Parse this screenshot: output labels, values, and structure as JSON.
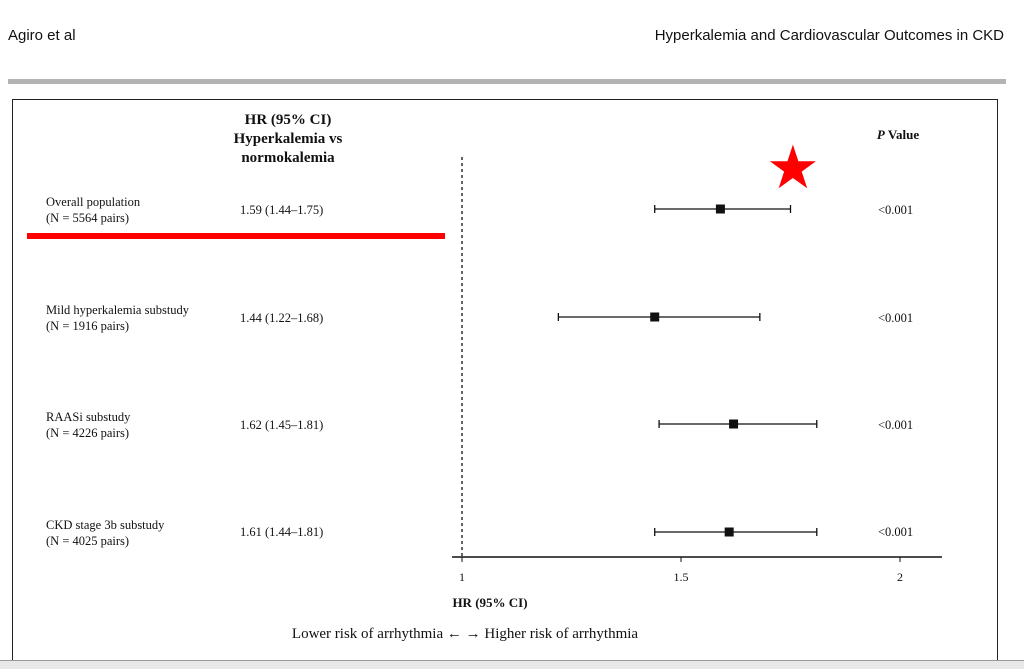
{
  "header": {
    "left": "Agiro et al",
    "right": "Hyperkalemia and Cardiovascular Outcomes in CKD"
  },
  "table": {
    "hr_header": [
      "HR (95% CI)",
      "Hyperkalemia vs",
      "normokalemia"
    ],
    "p_header_italic": "P",
    "p_header_rest": " Value"
  },
  "chart_data": {
    "type": "forest",
    "xlabel": "HR (95% CI)",
    "xlim": [
      1,
      2.1
    ],
    "xticks": [
      "1",
      "1.5",
      "2"
    ],
    "xtick_values": [
      1,
      1.5,
      2
    ],
    "reference_line": 1,
    "rows": [
      {
        "label": "Overall population",
        "sublabel": "(N = 5564 pairs)",
        "hr_text": "1.59 (1.44–1.75)",
        "hr": 1.59,
        "lo": 1.44,
        "hi": 1.75,
        "p": "<0.001"
      },
      {
        "label": "Mild hyperkalemia substudy",
        "sublabel": "(N = 1916 pairs)",
        "hr_text": "1.44 (1.22–1.68)",
        "hr": 1.44,
        "lo": 1.22,
        "hi": 1.68,
        "p": "<0.001"
      },
      {
        "label": "RAASi substudy",
        "sublabel": "(N = 4226 pairs)",
        "hr_text": "1.62 (1.45–1.81)",
        "hr": 1.62,
        "lo": 1.45,
        "hi": 1.81,
        "p": "<0.001"
      },
      {
        "label": "CKD stage 3b substudy",
        "sublabel": "(N = 4025 pairs)",
        "hr_text": "1.61 (1.44–1.81)",
        "hr": 1.61,
        "lo": 1.44,
        "hi": 1.81,
        "p": "<0.001"
      }
    ],
    "footnote": "Lower risk of arrhythmia ←     → Higher risk of arrhythmia",
    "highlight_color": "#ff0000"
  }
}
